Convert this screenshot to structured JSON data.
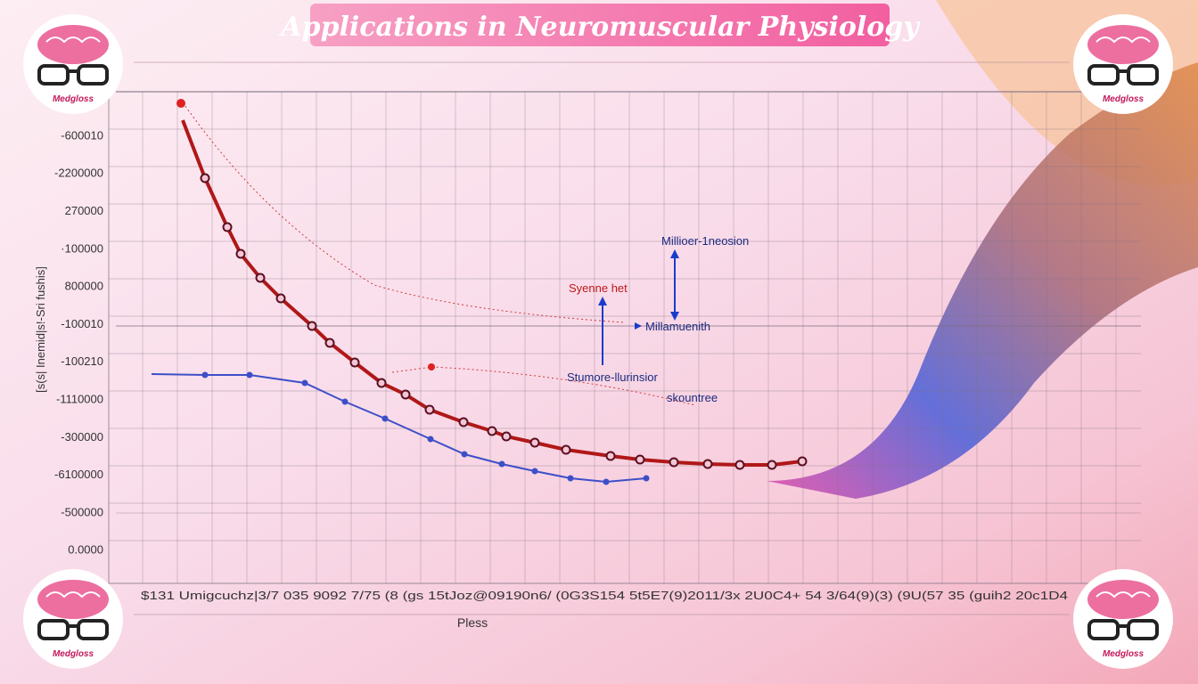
{
  "header": {
    "title": "Applications in Neuromuscular Physiology"
  },
  "brand": {
    "labels": [
      "Medgloss",
      "Medgloss",
      "Medgloss",
      "Medgloss"
    ]
  },
  "axes": {
    "y_title": "[s(s| Inemid|s!-Sri fushis]",
    "y_labels": [
      "-600010",
      "-2200000",
      "270000",
      "·100000",
      "800000",
      "-100010",
      "-100210",
      "-1110000",
      "-300000",
      "-6100000",
      "-500000",
      "0.0000"
    ],
    "x_labels": "$131 Umigcuchz|3/7 035 9092 7/75 (8 (gs 15tJoz@09190n6/ (0G3S154 5t5E7(9)2011/3x 2U0C4+ 54 3/64(9)(3) (9U(57 35 (guih2 20c1D4",
    "x_title": "Pless"
  },
  "annotations": [
    "Millioer-1neosion",
    "Syenne het",
    "Millamuenith",
    "Stumore-llurinsior",
    "skountree"
  ]
}
